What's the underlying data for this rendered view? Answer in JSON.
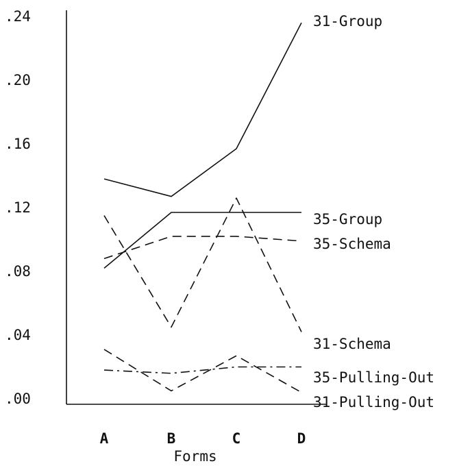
{
  "chart_data": {
    "type": "line",
    "xlabel": "Forms",
    "ylabel": "",
    "categories": [
      "A",
      "B",
      "C",
      "D"
    ],
    "ylim": [
      0,
      0.24
    ],
    "y_ticks": [
      0.0,
      0.04,
      0.08,
      0.12,
      0.16,
      0.2,
      0.24
    ],
    "y_tick_labels": [
      ".00",
      ".04",
      ".08",
      ".12",
      ".16",
      ".20",
      ".24"
    ],
    "grid": false,
    "legend": "none (series labeled at right end of each line)",
    "series": [
      {
        "name": "31-Group",
        "style": "solid",
        "values": [
          0.138,
          0.127,
          0.157,
          0.236
        ]
      },
      {
        "name": "35-Group",
        "style": "solid",
        "values": [
          0.082,
          0.117,
          0.117,
          0.117
        ]
      },
      {
        "name": "35-Schema",
        "style": "dashed",
        "values": [
          0.088,
          0.102,
          0.102,
          0.099
        ]
      },
      {
        "name": "31-Schema",
        "style": "dashed",
        "values": [
          0.115,
          0.045,
          0.126,
          0.042
        ]
      },
      {
        "name": "35-Pulling-Out",
        "style": "dashdot",
        "values": [
          0.018,
          0.016,
          0.02,
          0.02
        ]
      },
      {
        "name": "31-Pulling-Out",
        "style": "dashed",
        "values": [
          0.031,
          0.005,
          0.027,
          0.004
        ]
      }
    ]
  }
}
